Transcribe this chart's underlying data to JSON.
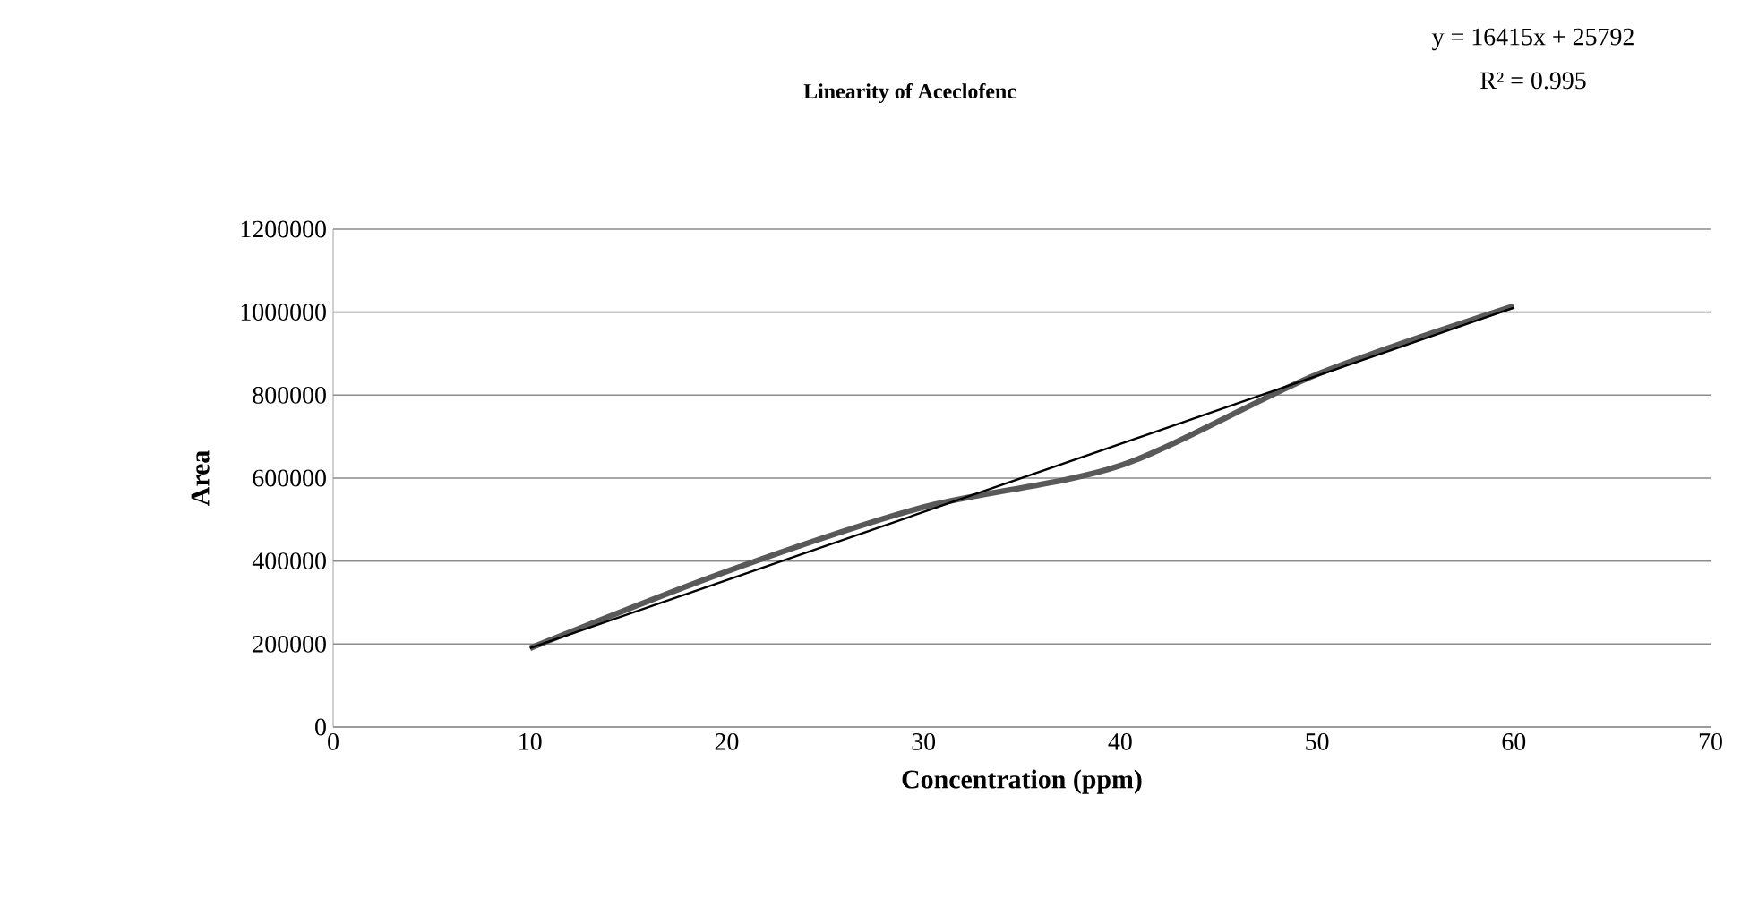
{
  "chart_data": {
    "type": "line",
    "title": "Linearity of Aceclofenc",
    "xlabel": "Concentration (ppm)",
    "ylabel": "Area",
    "annotations": [
      "y = 16415x + 25792",
      "R² = 0.995"
    ],
    "x": [
      10,
      20,
      30,
      40,
      50,
      60
    ],
    "series": [
      {
        "color": "#595959",
        "values": [
          190000,
          375000,
          530000,
          630000,
          850000,
          1015000
        ]
      },
      {
        "type": "line",
        "color": "#000000",
        "x": [
          10,
          60
        ],
        "values": [
          189942,
          1010692
        ]
      }
    ],
    "xlim": [
      0,
      70
    ],
    "xticks": [
      0,
      10,
      20,
      30,
      40,
      50,
      60,
      70
    ],
    "ylim": [
      0,
      1200000
    ],
    "yticks": [
      0,
      200000,
      400000,
      600000,
      800000,
      1000000,
      1200000
    ],
    "grid": "y"
  }
}
